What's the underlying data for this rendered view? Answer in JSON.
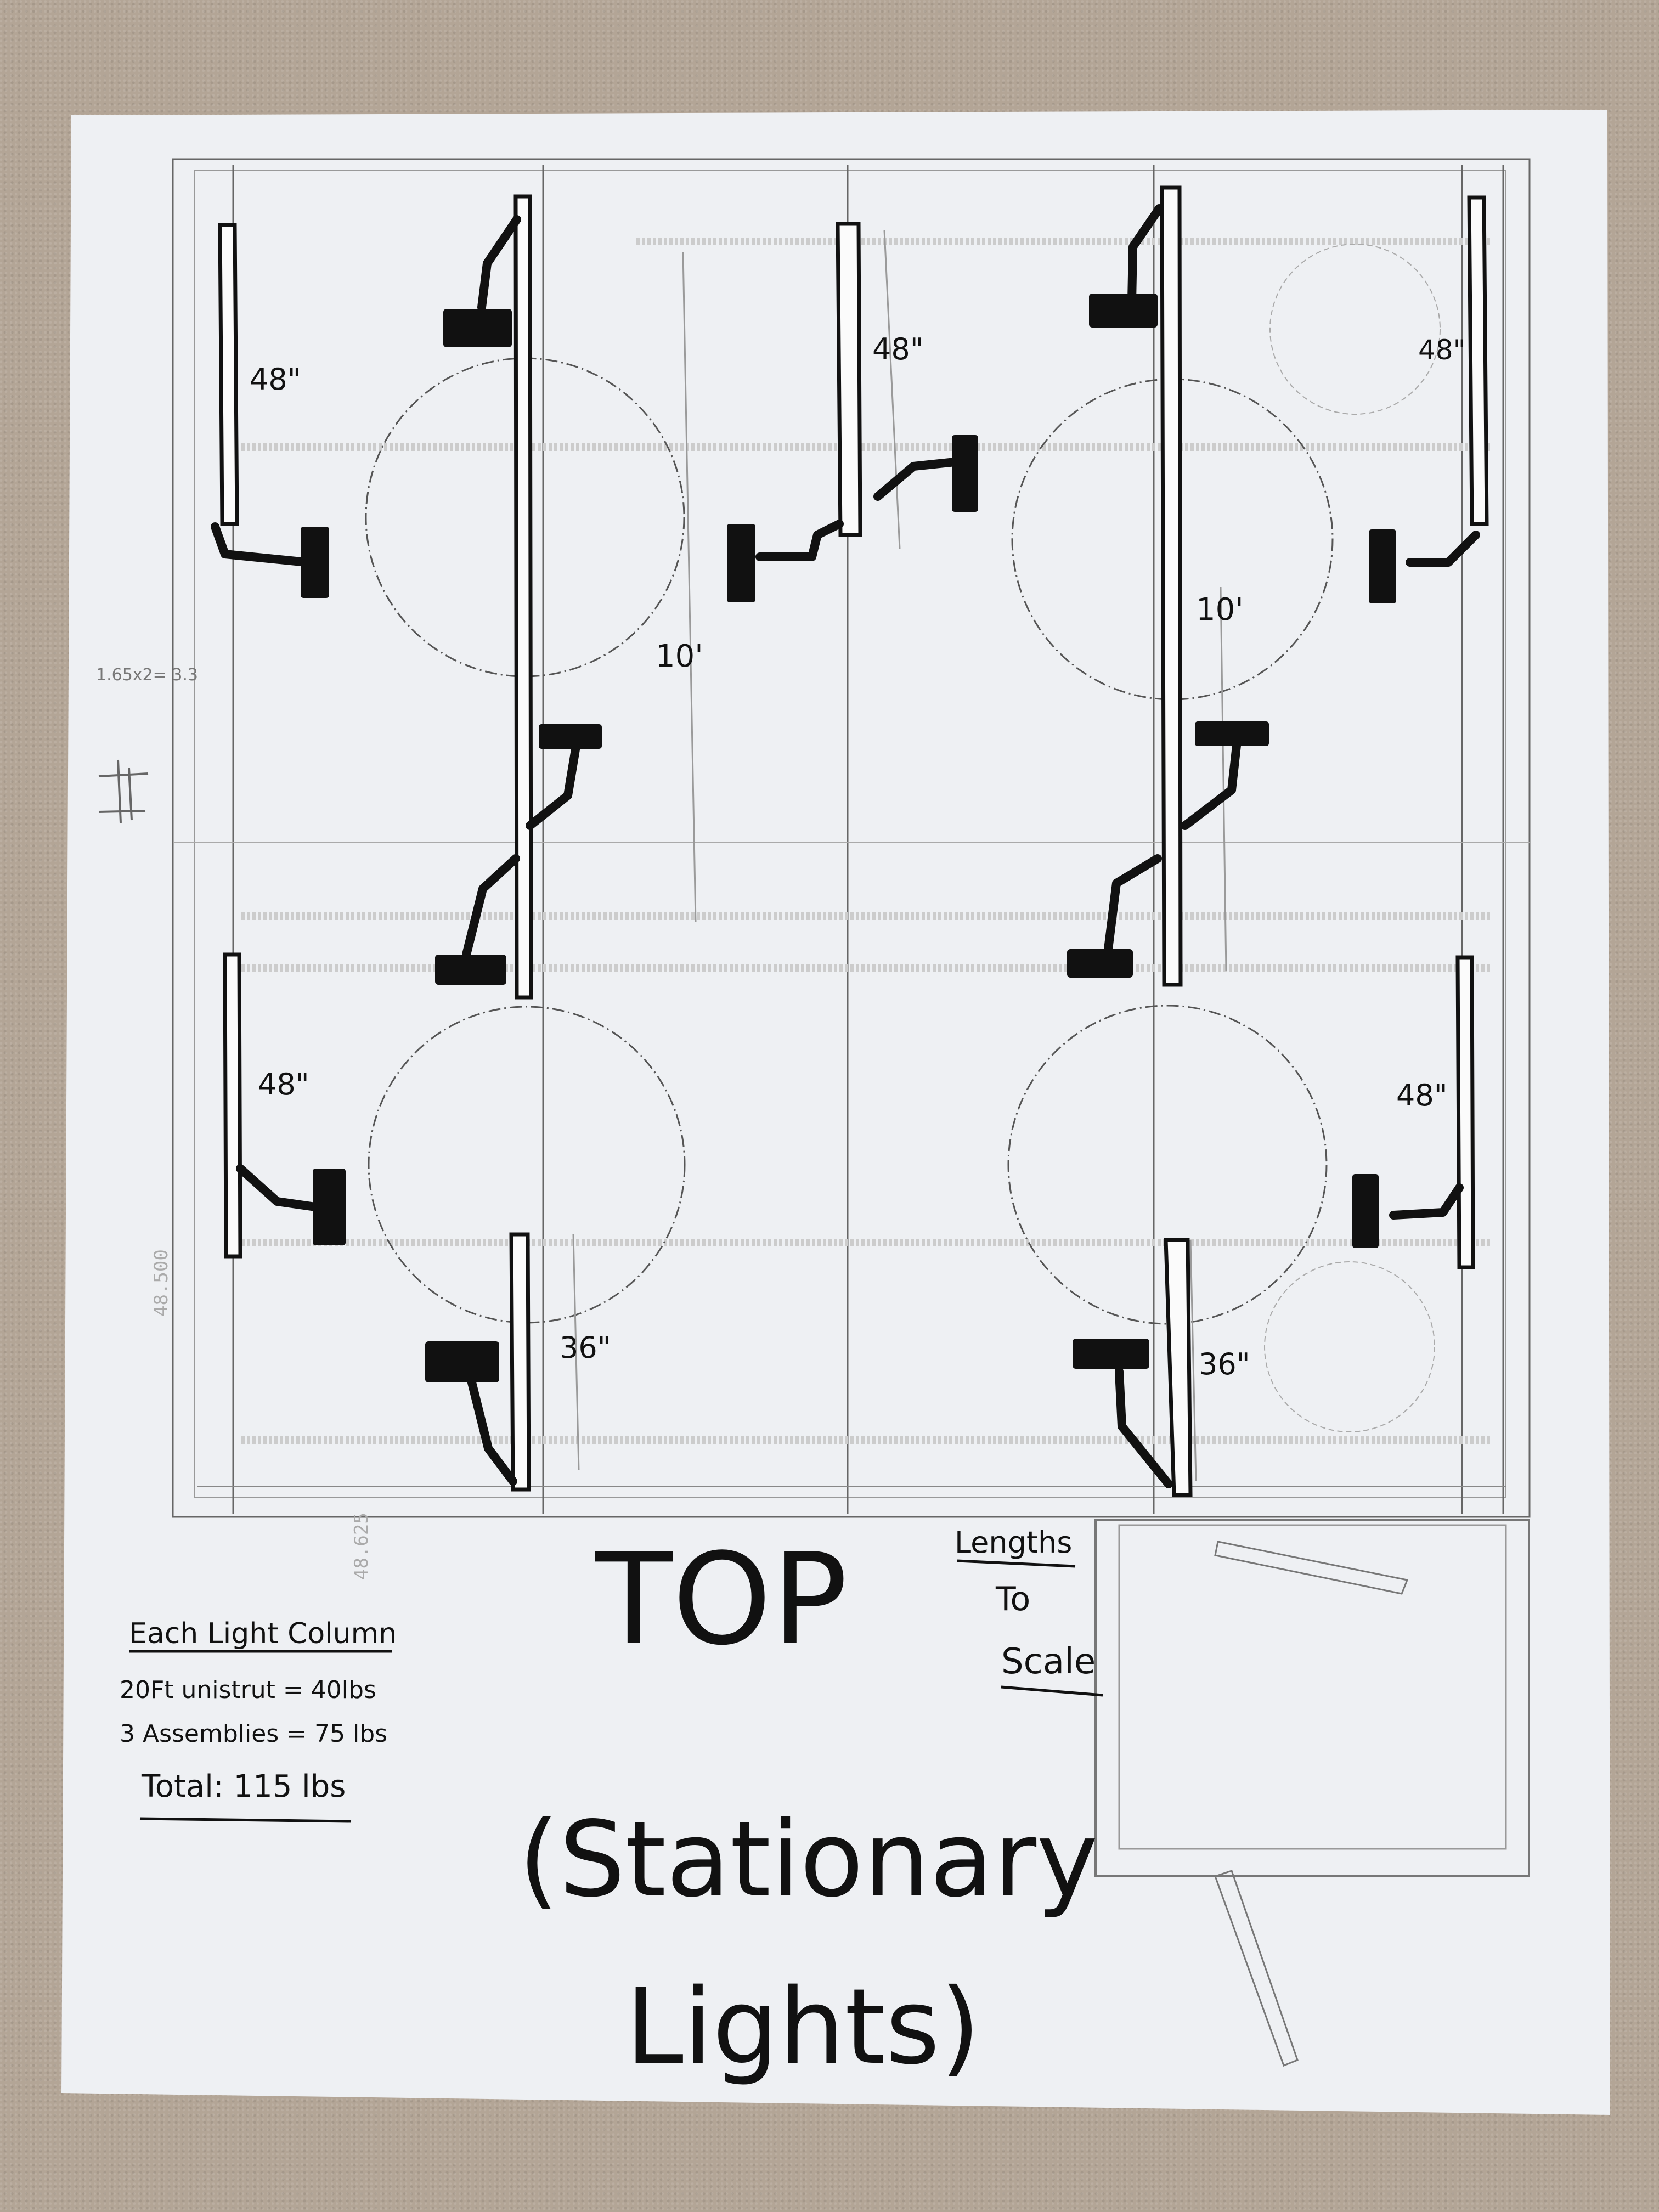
{
  "title": "TOP",
  "subtitle_line1": "(Stationary",
  "subtitle_line2": "Lights)",
  "scale_note": {
    "line1": "Lengths",
    "line2": "To",
    "line3": "Scale"
  },
  "notes": {
    "heading": "Each Light Column",
    "line1": "20Ft unistrut = 40lbs",
    "line2": "3 Assemblies = 75 lbs",
    "total": "Total: 115 lbs"
  },
  "side_scribble": "1.65x2= 3.3",
  "lengths": {
    "top_left_column": "48\"",
    "top_middle_column": "48\"",
    "top_right_column": "48\"",
    "left_long_column": "10'",
    "right_long_column": "10'",
    "bottom_left_column": "48\"",
    "bottom_right_column": "48\"",
    "bottom_left_short": "36\"",
    "bottom_right_short": "36\""
  },
  "dimensions": {
    "vertical": "48.500",
    "horizontal": "48.625"
  },
  "colors": {
    "paper": "#eef0f3",
    "ink": "#111111",
    "pencil": "#777777",
    "background": "#b3a596"
  }
}
